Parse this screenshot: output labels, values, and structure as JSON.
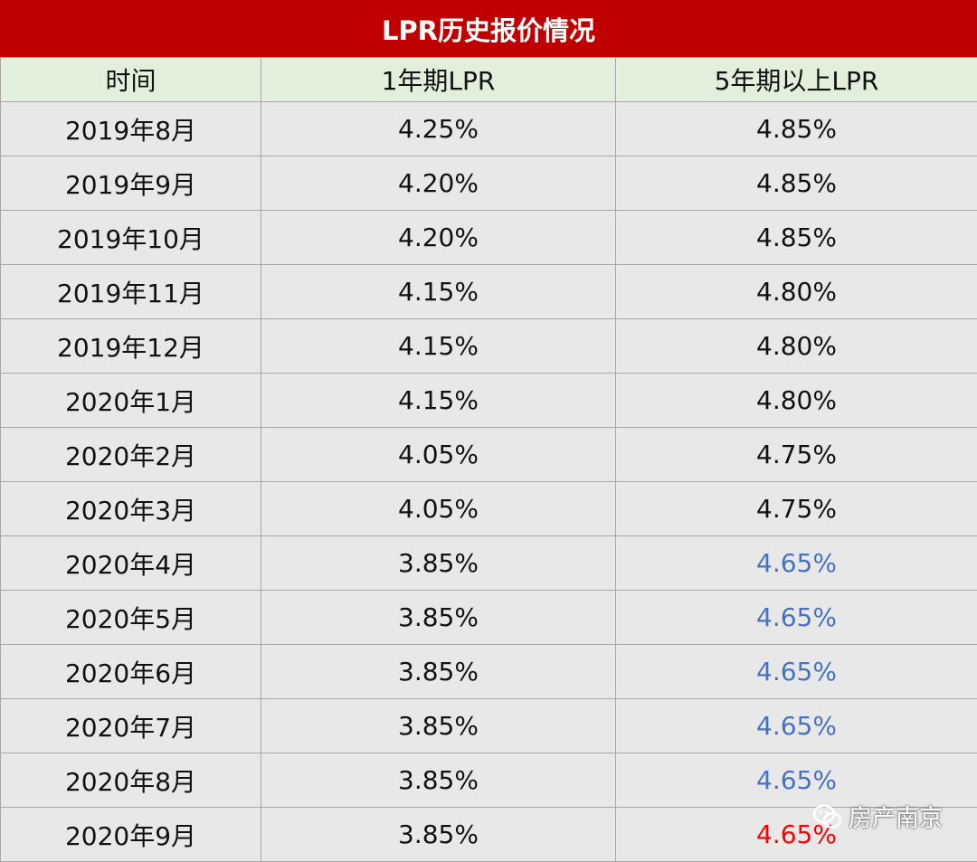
{
  "table": {
    "title": "LPR历史报价情况",
    "header": [
      "时间",
      "1年期LPR",
      "5年期以上LPR"
    ],
    "rows": [
      [
        "2019年8月",
        "4.25%",
        "4.85%"
      ],
      [
        "2019年9月",
        "4.20%",
        "4.85%"
      ],
      [
        "2019年10月",
        "4.20%",
        "4.85%"
      ],
      [
        "2019年11月",
        "4.15%",
        "4.80%"
      ],
      [
        "2019年12月",
        "4.15%",
        "4.80%"
      ],
      [
        "2020年1月",
        "4.15%",
        "4.80%"
      ],
      [
        "2020年2月",
        "4.05%",
        "4.75%"
      ],
      [
        "2020年3月",
        "4.05%",
        "4.75%"
      ],
      [
        "2020年4月",
        "3.85%",
        "4.65%"
      ],
      [
        "2020年5月",
        "3.85%",
        "4.65%"
      ],
      [
        "2020年6月",
        "3.85%",
        "4.65%"
      ],
      [
        "2020年7月",
        "3.85%",
        "4.65%"
      ],
      [
        "2020年8月",
        "3.85%",
        "4.65%"
      ],
      [
        "2020年9月",
        "3.85%",
        "4.65%"
      ]
    ],
    "last_column_colors": [
      "#111111",
      "#111111",
      "#111111",
      "#111111",
      "#111111",
      "#111111",
      "#111111",
      "#111111",
      "#4472c4",
      "#4472c4",
      "#4472c4",
      "#4472c4",
      "#4472c4",
      "#ff0000"
    ]
  },
  "watermark": "房产南京"
}
